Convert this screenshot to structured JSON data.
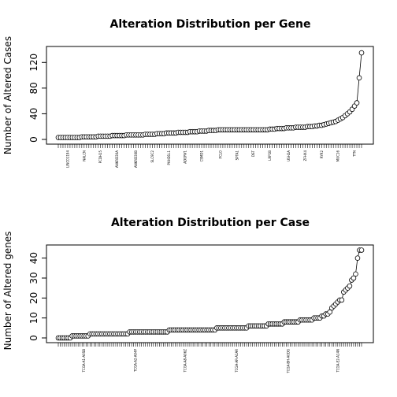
{
  "chart_data": [
    {
      "type": "scatter",
      "title": "Alteration Distribution per Gene",
      "xlabel": "",
      "ylabel": "Number of Altered Cases",
      "ylim": [
        0,
        140
      ],
      "yticks": [
        0,
        40,
        80,
        120
      ],
      "grid": false,
      "connected": true,
      "n_points": 130,
      "values": [
        3,
        3,
        3,
        3,
        3,
        3,
        3,
        3,
        3,
        3,
        4,
        4,
        4,
        4,
        4,
        4,
        4,
        5,
        5,
        5,
        5,
        5,
        5,
        6,
        6,
        6,
        6,
        6,
        6,
        7,
        7,
        7,
        7,
        7,
        7,
        7,
        7,
        8,
        8,
        8,
        8,
        8,
        9,
        9,
        9,
        9,
        10,
        10,
        10,
        10,
        10,
        11,
        11,
        11,
        11,
        11,
        12,
        12,
        12,
        12,
        13,
        13,
        13,
        13,
        14,
        14,
        14,
        14,
        15,
        15,
        15,
        15,
        15,
        15,
        15,
        15,
        15,
        15,
        15,
        15,
        15,
        15,
        15,
        15,
        15,
        15,
        15,
        15,
        15,
        15,
        16,
        16,
        16,
        17,
        17,
        17,
        17,
        18,
        18,
        18,
        18,
        19,
        19,
        19,
        19,
        19,
        20,
        20,
        20,
        21,
        21,
        22,
        22,
        23,
        24,
        25,
        26,
        27,
        28,
        30,
        32,
        34,
        37,
        40,
        43,
        47,
        52,
        57,
        96,
        135
      ],
      "tick_label_texts": [
        "LINC01194",
        "NALCN",
        "PCDH15",
        "ANKRD30A",
        "ANKRD30B",
        "SLC9C2",
        "PKHD1L1",
        "ADGRV1",
        "CSMD1",
        "PCLO",
        "SPTA1",
        "DST",
        "LRP1B",
        "USH2A",
        "ZFHX4",
        "RYR2",
        "MUC16",
        "TTN"
      ]
    },
    {
      "type": "scatter",
      "title": "Alteration Distribution per Case",
      "xlabel": "",
      "ylabel": "Number of Altered genes",
      "ylim": [
        0,
        45
      ],
      "yticks": [
        0,
        10,
        20,
        30,
        40
      ],
      "grid": false,
      "connected": true,
      "n_points": 152,
      "values": [
        0,
        0,
        0,
        0,
        0,
        0,
        0,
        1,
        1,
        1,
        1,
        1,
        1,
        1,
        1,
        1,
        2,
        2,
        2,
        2,
        2,
        2,
        2,
        2,
        2,
        2,
        2,
        2,
        2,
        2,
        2,
        2,
        2,
        2,
        2,
        2,
        3,
        3,
        3,
        3,
        3,
        3,
        3,
        3,
        3,
        3,
        3,
        3,
        3,
        3,
        3,
        3,
        3,
        3,
        3,
        3,
        4,
        4,
        4,
        4,
        4,
        4,
        4,
        4,
        4,
        4,
        4,
        4,
        4,
        4,
        4,
        4,
        4,
        4,
        4,
        4,
        4,
        4,
        4,
        4,
        5,
        5,
        5,
        5,
        5,
        5,
        5,
        5,
        5,
        5,
        5,
        5,
        5,
        5,
        5,
        5,
        6,
        6,
        6,
        6,
        6,
        6,
        6,
        6,
        6,
        6,
        7,
        7,
        7,
        7,
        7,
        7,
        7,
        7,
        8,
        8,
        8,
        8,
        8,
        8,
        8,
        8,
        9,
        9,
        9,
        9,
        9,
        9,
        9,
        10,
        10,
        10,
        10,
        11,
        11,
        12,
        12,
        13,
        15,
        16,
        17,
        18,
        19,
        19,
        23,
        24,
        25,
        26,
        29,
        30,
        32,
        40,
        44,
        44
      ],
      "tick_label_texts": [
        "TCGA-A1-A0SB",
        "TCGA-A2-A04P",
        "TCGA-A8-A06Z",
        "TCGA-AR-A1AR",
        "TCGA-BH-A0DG",
        "TCGA-E2-A14N"
      ]
    }
  ]
}
